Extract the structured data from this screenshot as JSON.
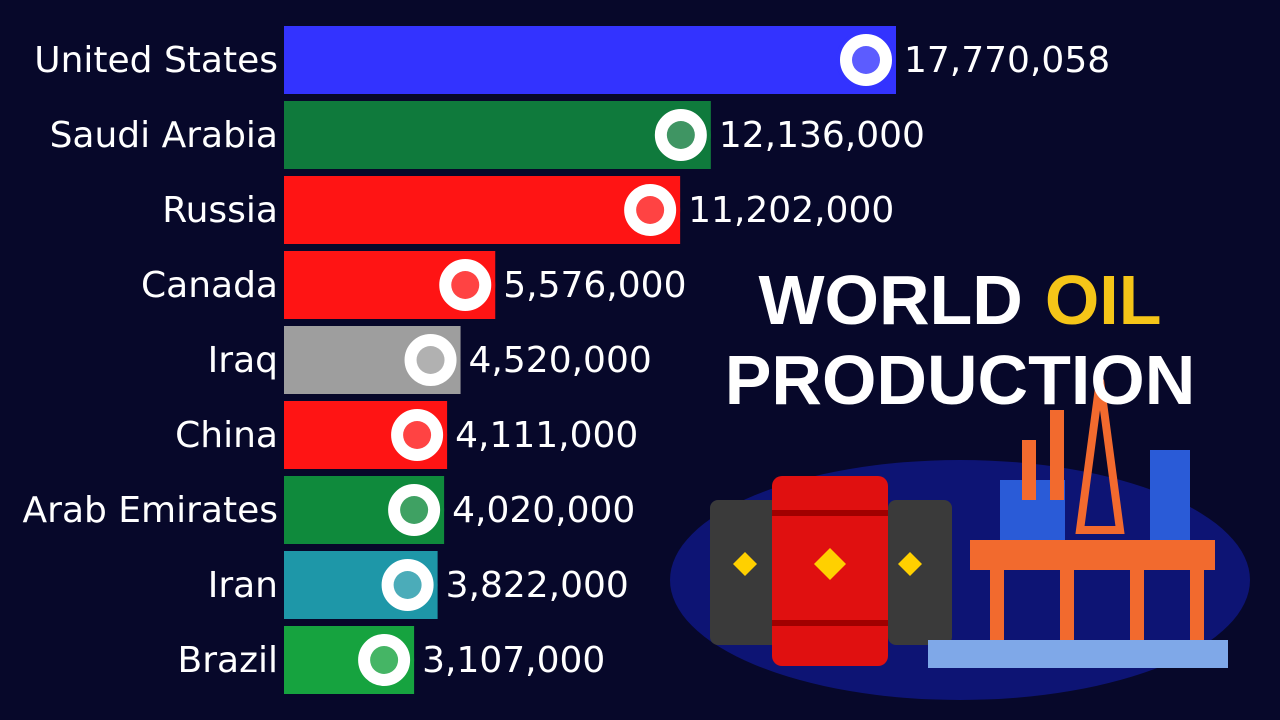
{
  "chart_data": {
    "type": "bar",
    "orientation": "horizontal",
    "title": [
      "WORLD",
      "OIL",
      "PRODUCTION"
    ],
    "title_colors": [
      "#ffffff",
      "#f5c518",
      "#ffffff"
    ],
    "categories": [
      "United States",
      "Saudi Arabia",
      "Russia",
      "Canada",
      "Iraq",
      "China",
      "Arab Emirates",
      "Iran",
      "Brazil"
    ],
    "values": [
      17770058,
      12136000,
      11202000,
      5576000,
      4520000,
      4111000,
      4020000,
      3822000,
      3107000
    ],
    "value_labels": [
      "17,770,058",
      "12,136,000",
      "11,202,000",
      "5,576,000",
      "4,520,000",
      "4,111,000",
      "4,020,000",
      "3,822,000",
      "3,107,000"
    ],
    "colors": [
      "#3333ff",
      "#0f7a3c",
      "#ff1414",
      "#ff1414",
      "#9e9e9e",
      "#ff1414",
      "#0f8a3c",
      "#1e97a8",
      "#16a33f"
    ]
  }
}
